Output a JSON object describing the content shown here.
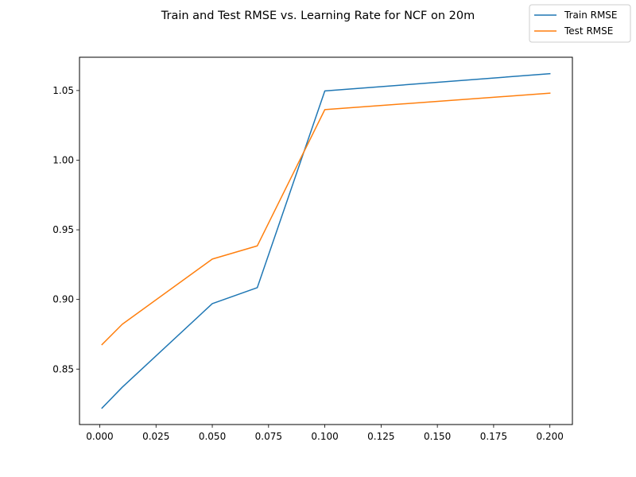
{
  "chart_data": {
    "type": "line",
    "title": "Train and Test RMSE vs. Learning Rate for NCF on 20m",
    "xlabel": "",
    "ylabel": "",
    "x": [
      0.001,
      0.01,
      0.05,
      0.07,
      0.1,
      0.2
    ],
    "series": [
      {
        "name": "Train RMSE",
        "color": "#1f77b4",
        "values": [
          0.822,
          0.837,
          0.897,
          0.9085,
          1.0497,
          1.0621
        ]
      },
      {
        "name": "Test RMSE",
        "color": "#ff7f0e",
        "values": [
          0.8676,
          0.8822,
          0.929,
          0.9385,
          1.0363,
          1.0481
        ]
      }
    ],
    "xlim": [
      -0.009,
      0.21
    ],
    "ylim": [
      0.8102,
      1.0739
    ],
    "xticks": [
      0.0,
      0.025,
      0.05,
      0.075,
      0.1,
      0.125,
      0.15,
      0.175,
      0.2
    ],
    "xtick_labels": [
      "0.000",
      "0.025",
      "0.050",
      "0.075",
      "0.100",
      "0.125",
      "0.150",
      "0.175",
      "0.200"
    ],
    "yticks": [
      0.85,
      0.9,
      0.95,
      1.0,
      1.05
    ],
    "ytick_labels": [
      "0.85",
      "0.90",
      "0.95",
      "1.00",
      "1.05"
    ],
    "grid": false,
    "legend_position": "top-right"
  }
}
